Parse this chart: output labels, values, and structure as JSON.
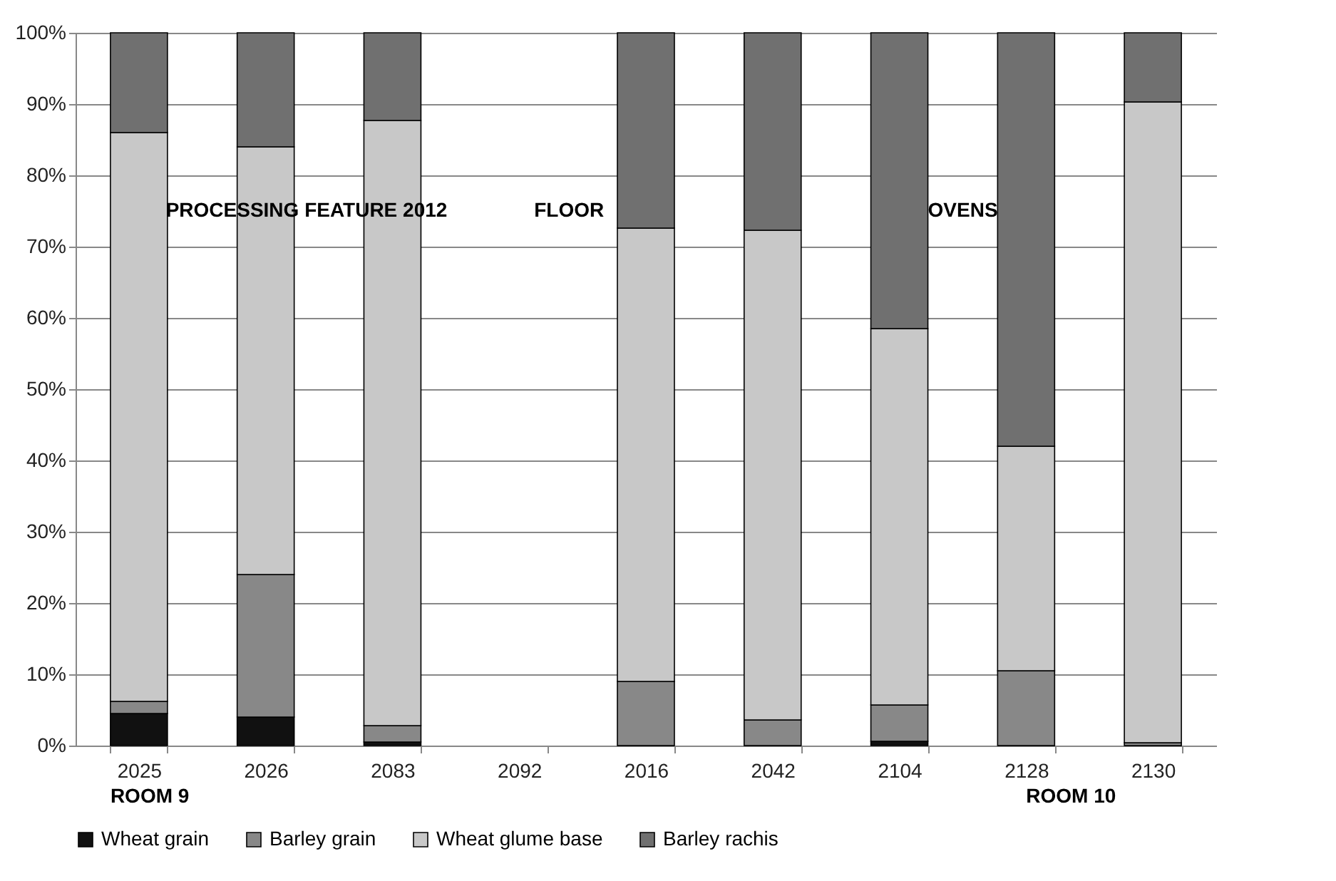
{
  "chart_data": {
    "type": "bar",
    "stacked": true,
    "categories": [
      "2025",
      "2026",
      "2083",
      "2092",
      "2016",
      "2042",
      "2104",
      "2128",
      "2130"
    ],
    "series": [
      {
        "name": "Wheat grain",
        "color": "#111111",
        "values": [
          4.5,
          4,
          0.5,
          null,
          0,
          0,
          0.6,
          0,
          0
        ]
      },
      {
        "name": "Barley grain",
        "color": "#888888",
        "values": [
          1.7,
          20,
          2.3,
          null,
          9,
          3.6,
          5.1,
          10.5,
          0.4
        ]
      },
      {
        "name": "Wheat glume base",
        "color": "#c8c8c8",
        "values": [
          79.8,
          60,
          84.9,
          null,
          63.6,
          68.7,
          52.8,
          31.5,
          89.9
        ]
      },
      {
        "name": "Barley rachis",
        "color": "#707070",
        "values": [
          14,
          16,
          12.3,
          null,
          27.4,
          27.7,
          41.5,
          58,
          9.7
        ]
      }
    ],
    "ylim": [
      0,
      100
    ],
    "yticks": [
      {
        "value": 0,
        "label": "0%"
      },
      {
        "value": 10,
        "label": "10%"
      },
      {
        "value": 20,
        "label": "20%"
      },
      {
        "value": 30,
        "label": "30%"
      },
      {
        "value": 40,
        "label": "40%"
      },
      {
        "value": 50,
        "label": "50%"
      },
      {
        "value": 60,
        "label": "60%"
      },
      {
        "value": 70,
        "label": "70%"
      },
      {
        "value": 80,
        "label": "80%"
      },
      {
        "value": 90,
        "label": "90%"
      },
      {
        "value": 100,
        "label": "100%"
      }
    ],
    "grid": "y",
    "legend": "bottom",
    "annotations": [
      "PROCESSING FEATURE 2012",
      "FLOOR",
      "OVENS",
      "ROOM 9",
      "ROOM 10"
    ]
  }
}
